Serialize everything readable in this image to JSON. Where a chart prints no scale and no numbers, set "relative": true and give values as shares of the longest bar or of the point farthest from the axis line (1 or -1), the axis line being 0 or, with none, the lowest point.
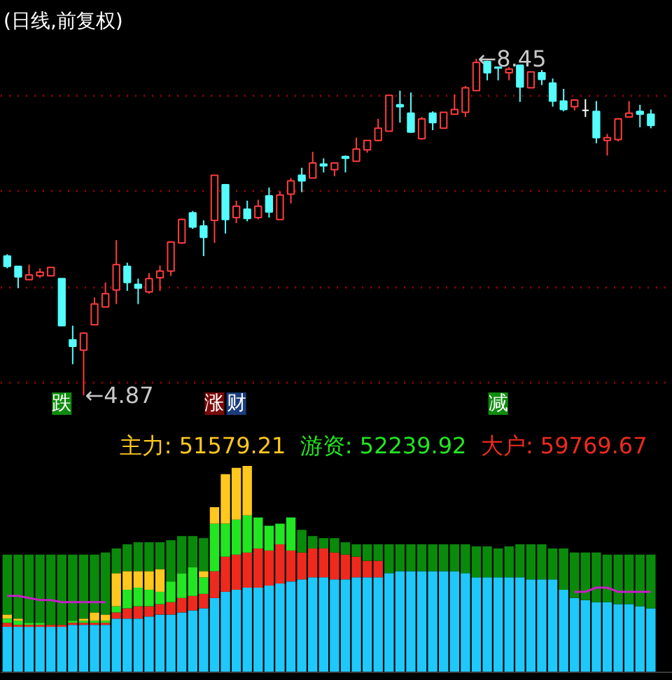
{
  "chart_data": [
    {
      "type": "candlestick",
      "title": "(日线,前复权)",
      "categories": [
        null,
        null,
        null,
        null,
        null,
        null,
        null,
        null,
        null,
        null,
        null,
        null,
        null,
        null,
        null,
        null,
        null,
        null,
        null,
        null,
        null,
        null,
        null,
        null,
        null,
        null,
        null,
        null,
        null,
        null,
        null,
        null,
        null,
        null,
        null,
        null,
        null,
        null,
        null,
        null,
        null,
        null,
        null,
        null,
        null,
        null,
        null,
        null,
        null,
        null,
        null,
        null,
        null,
        null,
        null,
        null,
        null,
        null,
        null,
        null
      ],
      "ohlc": [
        [
          6.35,
          6.37,
          6.22,
          6.24
        ],
        [
          6.24,
          6.24,
          6.01,
          6.13
        ],
        [
          6.1,
          6.26,
          6.1,
          6.15
        ],
        [
          6.14,
          6.22,
          6.12,
          6.18
        ],
        [
          6.14,
          6.23,
          6.14,
          6.23
        ],
        [
          6.11,
          6.11,
          5.61,
          5.61
        ],
        [
          5.46,
          5.61,
          5.2,
          5.39
        ],
        [
          5.35,
          5.54,
          4.87,
          5.53
        ],
        [
          5.62,
          5.91,
          5.62,
          5.84
        ],
        [
          5.81,
          6.07,
          5.81,
          5.95
        ],
        [
          5.99,
          6.52,
          5.84,
          6.26
        ],
        [
          6.24,
          6.28,
          5.98,
          6.07
        ],
        [
          6.05,
          6.11,
          5.84,
          6.01
        ],
        [
          5.97,
          6.17,
          5.95,
          6.11
        ],
        [
          6.12,
          6.25,
          5.98,
          6.19
        ],
        [
          6.19,
          6.5,
          6.14,
          6.5
        ],
        [
          6.49,
          6.75,
          6.48,
          6.74
        ],
        [
          6.81,
          6.83,
          6.64,
          6.66
        ],
        [
          6.67,
          6.73,
          6.35,
          6.55
        ],
        [
          6.73,
          7.21,
          6.49,
          7.21
        ],
        [
          7.11,
          7.11,
          6.59,
          6.74
        ],
        [
          6.76,
          6.94,
          6.7,
          6.88
        ],
        [
          6.85,
          6.94,
          6.72,
          6.75
        ],
        [
          6.76,
          6.95,
          6.74,
          6.88
        ],
        [
          6.99,
          7.08,
          6.76,
          6.82
        ],
        [
          6.74,
          7.04,
          6.74,
          7.0
        ],
        [
          7.01,
          7.18,
          6.91,
          7.15
        ],
        [
          7.21,
          7.29,
          7.03,
          7.15
        ],
        [
          7.18,
          7.46,
          7.18,
          7.34
        ],
        [
          7.33,
          7.39,
          7.24,
          7.31
        ],
        [
          7.27,
          7.34,
          7.2,
          7.34
        ],
        [
          7.41,
          7.42,
          7.24,
          7.39
        ],
        [
          7.36,
          7.61,
          7.36,
          7.49
        ],
        [
          7.48,
          7.58,
          7.45,
          7.58
        ],
        [
          7.58,
          7.81,
          7.57,
          7.71
        ],
        [
          7.68,
          8.06,
          7.68,
          8.06
        ],
        [
          7.96,
          8.11,
          7.77,
          7.94
        ],
        [
          7.87,
          8.09,
          7.66,
          7.67
        ],
        [
          7.6,
          7.83,
          7.59,
          7.81
        ],
        [
          7.87,
          7.89,
          7.69,
          7.77
        ],
        [
          7.71,
          7.88,
          7.71,
          7.88
        ],
        [
          7.86,
          8.07,
          7.86,
          7.91
        ],
        [
          7.88,
          8.16,
          7.83,
          8.14
        ],
        [
          8.11,
          8.45,
          8.11,
          8.41
        ],
        [
          8.42,
          8.43,
          8.22,
          8.3
        ],
        [
          8.36,
          8.36,
          8.22,
          8.35
        ],
        [
          8.3,
          8.36,
          8.22,
          8.34
        ],
        [
          8.38,
          8.38,
          7.99,
          8.15
        ],
        [
          8.14,
          8.31,
          8.14,
          8.31
        ],
        [
          8.3,
          8.33,
          8.17,
          8.23
        ],
        [
          8.19,
          8.24,
          7.94,
          8.0
        ],
        [
          8.0,
          8.13,
          7.89,
          7.91
        ],
        [
          7.94,
          8.02,
          7.9,
          8.01
        ],
        [
          7.9,
          8.02,
          7.83,
          7.9
        ],
        [
          7.89,
          8.0,
          7.55,
          7.61
        ],
        [
          7.58,
          7.65,
          7.42,
          7.61
        ],
        [
          7.59,
          7.81,
          7.57,
          7.81
        ],
        [
          7.83,
          8.0,
          7.83,
          7.87
        ],
        [
          7.89,
          7.96,
          7.72,
          7.86
        ],
        [
          7.86,
          7.91,
          7.71,
          7.74
        ]
      ],
      "colors": [
        "#54fcfc",
        "#54fcfc",
        "#ff3c3c",
        "#ff3c3c",
        "#ff3c3c",
        "#54fcfc",
        "#54fcfc",
        "#ff3c3c",
        "#ff3c3c",
        "#ff3c3c",
        "#ff3c3c",
        "#54fcfc",
        "#54fcfc",
        "#ff3c3c",
        "#ff3c3c",
        "#ff3c3c",
        "#ff3c3c",
        "#54fcfc",
        "#54fcfc",
        "#ff3c3c",
        "#54fcfc",
        "#ff3c3c",
        "#54fcfc",
        "#ff3c3c",
        "#54fcfc",
        "#ff3c3c",
        "#ff3c3c",
        "#54fcfc",
        "#ff3c3c",
        "#54fcfc",
        "#ff3c3c",
        "#54fcfc",
        "#ff3c3c",
        "#ff3c3c",
        "#ff3c3c",
        "#ff3c3c",
        "#54fcfc",
        "#54fcfc",
        "#ff3c3c",
        "#54fcfc",
        "#ff3c3c",
        "#ff3c3c",
        "#ff3c3c",
        "#ff3c3c",
        "#54fcfc",
        "#54fcfc",
        "#ff3c3c",
        "#54fcfc",
        "#ff3c3c",
        "#54fcfc",
        "#54fcfc",
        "#54fcfc",
        "#ff3c3c",
        "#ffffff",
        "#54fcfc",
        "#ff3c3c",
        "#ff3c3c",
        "#ff3c3c",
        "#54fcfc",
        "#54fcfc"
      ],
      "yticks": [
        {
          "value": 5.0,
          "label": null
        },
        {
          "value": 6.02,
          "label": null
        },
        {
          "value": 7.04,
          "label": null
        },
        {
          "value": 8.06,
          "label": null
        }
      ],
      "grid": "y",
      "tick_labels": false,
      "annotations": [
        "←4.87",
        "←8.45",
        "跌",
        "涨",
        "财",
        "减"
      ]
    },
    {
      "type": "bar",
      "stacked": true,
      "relative": true,
      "legend": "top right",
      "categories": [
        null,
        null,
        null,
        null,
        null,
        null,
        null,
        null,
        null,
        null,
        null,
        null,
        null,
        null,
        null,
        null,
        null,
        null,
        null,
        null,
        null,
        null,
        null,
        null,
        null,
        null,
        null,
        null,
        null,
        null,
        null,
        null,
        null,
        null,
        null,
        null,
        null,
        null,
        null,
        null,
        null,
        null,
        null,
        null,
        null,
        null,
        null,
        null,
        null,
        null,
        null,
        null,
        null,
        null,
        null,
        null,
        null,
        null,
        null,
        null
      ],
      "series": [
        {
          "color": "#1ec8fa",
          "values": [
            0.22,
            0.22,
            0.22,
            0.22,
            0.22,
            0.22,
            0.23,
            0.23,
            0.23,
            0.23,
            0.26,
            0.26,
            0.26,
            0.27,
            0.28,
            0.28,
            0.29,
            0.3,
            0.31,
            0.36,
            0.39,
            0.4,
            0.41,
            0.41,
            0.42,
            0.43,
            0.44,
            0.45,
            0.46,
            0.46,
            0.45,
            0.45,
            0.46,
            0.46,
            0.46,
            0.48,
            0.49,
            0.49,
            0.49,
            0.49,
            0.49,
            0.49,
            0.48,
            0.46,
            0.46,
            0.46,
            0.46,
            0.46,
            0.45,
            0.45,
            0.45,
            0.4,
            0.36,
            0.35,
            0.34,
            0.34,
            0.33,
            0.33,
            0.32,
            0.31
          ]
        },
        {
          "name": "大户: 59769.67",
          "color": "#ee2a1e",
          "values": [
            0.02,
            0.01,
            0.01,
            0.01,
            0.01,
            0.01,
            0.01,
            0.01,
            0.01,
            0.01,
            0.03,
            0.05,
            0.06,
            0.05,
            0.05,
            0.06,
            0.07,
            0.07,
            0.07,
            0.13,
            0.17,
            0.17,
            0.17,
            0.19,
            0.17,
            0.19,
            0.15,
            0.13,
            0.14,
            0.14,
            0.13,
            0.12,
            0.1,
            0.08,
            0.08,
            null,
            null,
            null,
            null,
            null,
            null,
            null,
            null,
            null,
            null,
            null,
            null,
            null,
            null,
            null,
            null,
            null,
            null,
            null,
            null,
            null,
            null,
            null,
            null,
            null
          ]
        },
        {
          "name": "游资: 52239.92",
          "color": "#22e622",
          "values": [
            0.02,
            0.02,
            0.01,
            0.01,
            null,
            null,
            0.01,
            0.01,
            0.01,
            0.01,
            0.03,
            0.09,
            0.09,
            0.08,
            0.06,
            0.1,
            0.12,
            0.14,
            0.08,
            0.23,
            0.16,
            0.17,
            0.18,
            0.15,
            0.12,
            0.1,
            0.16,
            null,
            null,
            null,
            null,
            null,
            null,
            null,
            null,
            null,
            null,
            null,
            null,
            null,
            null,
            null,
            null,
            null,
            null,
            null,
            null,
            null,
            null,
            null,
            null,
            null,
            null,
            null,
            null,
            null,
            null,
            null,
            null,
            null
          ]
        },
        {
          "name": "主力: 51579.21",
          "color": "#ffc81e",
          "values": [
            0.02,
            0.01,
            null,
            null,
            null,
            null,
            null,
            0.01,
            0.04,
            0.03,
            0.16,
            0.09,
            0.08,
            0.09,
            0.11,
            null,
            null,
            null,
            0.03,
            0.08,
            0.24,
            0.25,
            0.24,
            null,
            null,
            null,
            null,
            null,
            null,
            null,
            null,
            null,
            null,
            null,
            null,
            null,
            null,
            null,
            null,
            null,
            null,
            null,
            null,
            null,
            null,
            null,
            null,
            null,
            null,
            null,
            null,
            null,
            null,
            null,
            null,
            null,
            null,
            null,
            null,
            null
          ]
        },
        {
          "color": "#0a8a0a",
          "values": [
            0.29,
            0.31,
            0.33,
            0.33,
            0.34,
            0.34,
            0.32,
            0.31,
            0.28,
            0.3,
            0.12,
            0.13,
            0.14,
            0.14,
            0.13,
            0.2,
            0.18,
            0.15,
            0.16,
            null,
            null,
            null,
            null,
            null,
            null,
            null,
            null,
            0.11,
            0.06,
            0.05,
            0.07,
            0.06,
            0.06,
            0.08,
            0.08,
            0.14,
            0.13,
            0.13,
            0.13,
            0.13,
            0.13,
            0.13,
            0.14,
            0.15,
            0.15,
            0.14,
            0.15,
            0.16,
            0.17,
            0.17,
            0.15,
            0.2,
            0.22,
            0.23,
            0.24,
            0.23,
            0.24,
            0.24,
            0.25,
            0.26
          ]
        },
        {
          "type": "line",
          "color": "#c81ec8",
          "values": [
            0.37,
            0.37,
            0.36,
            0.35,
            0.35,
            0.34,
            0.34,
            0.34,
            0.34,
            0.34,
            null,
            null,
            null,
            null,
            null,
            null,
            null,
            null,
            null,
            null,
            null,
            null,
            null,
            null,
            null,
            null,
            null,
            null,
            null,
            null,
            null,
            null,
            null,
            null,
            null,
            null,
            null,
            null,
            null,
            null,
            null,
            null,
            null,
            null,
            null,
            null,
            null,
            null,
            null,
            null,
            null,
            null,
            0.39,
            0.39,
            0.41,
            0.41,
            0.39,
            0.39,
            0.39,
            0.39
          ]
        }
      ]
    }
  ]
}
